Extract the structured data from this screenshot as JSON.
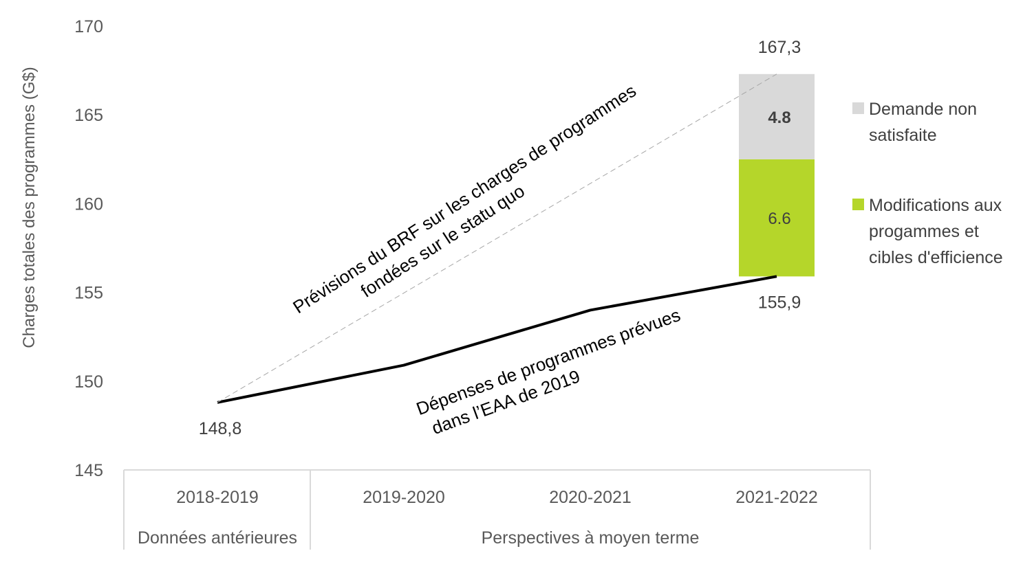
{
  "chart_data": {
    "type": "line",
    "ylabel": "Charges totales des programmes (G$)",
    "ylim": [
      145,
      170
    ],
    "yticks": [
      "145",
      "150",
      "155",
      "160",
      "165",
      "170"
    ],
    "categories": [
      "2018-2019",
      "2019-2020",
      "2020-2021",
      "2021-2022"
    ],
    "category_groups": [
      {
        "label": "Données antérieures",
        "span": [
          0,
          0
        ]
      },
      {
        "label": "Perspectives à moyen terme",
        "span": [
          1,
          3
        ]
      }
    ],
    "series": [
      {
        "name": "Dépenses de programmes prévues dans l’EAA de 2019",
        "label_lines": [
          "Dépenses de programmes prévues",
          "dans l’EAA de 2019"
        ],
        "values": [
          148.8,
          150.9,
          154.0,
          155.9
        ],
        "color": "#000000",
        "style": "solid"
      },
      {
        "name": "Prévisions du BRF sur les charges de programmes fondées sur le statu quo",
        "label_lines": [
          "Prévisions du BRF sur les charges de programmes",
          "fondées sur le statu quo"
        ],
        "values": [
          148.8,
          null,
          null,
          167.3
        ],
        "color": "#a6a6a6",
        "style": "dashed"
      }
    ],
    "stacked_bar": {
      "category": "2021-2022",
      "base": 155.9,
      "segments": [
        {
          "name": "Modifications aux progammes et cibles d'efficience",
          "value": 6.6,
          "label": "6.6",
          "color": "#b5d62a"
        },
        {
          "name": "Demande non satisfaite",
          "value": 4.8,
          "label": "4.8",
          "color": "#d9d9d9"
        }
      ]
    },
    "point_labels": [
      {
        "category": "2018-2019",
        "value": 148.8,
        "text": "148,8"
      },
      {
        "category": "2021-2022",
        "value": 155.9,
        "text": "155,9"
      },
      {
        "category": "2021-2022",
        "value": 167.3,
        "text": "167,3"
      }
    ],
    "legend": {
      "position": "right",
      "items": [
        {
          "lines": [
            "Demande non",
            "satisfaite"
          ],
          "color": "#d9d9d9"
        },
        {
          "lines": [
            "Modifications aux",
            "progammes et",
            "cibles d'efficience"
          ],
          "color": "#b5d62a"
        }
      ]
    },
    "colors": {
      "text": "#404040",
      "axis_text": "#595959",
      "frame": "#d9d9d9"
    }
  }
}
